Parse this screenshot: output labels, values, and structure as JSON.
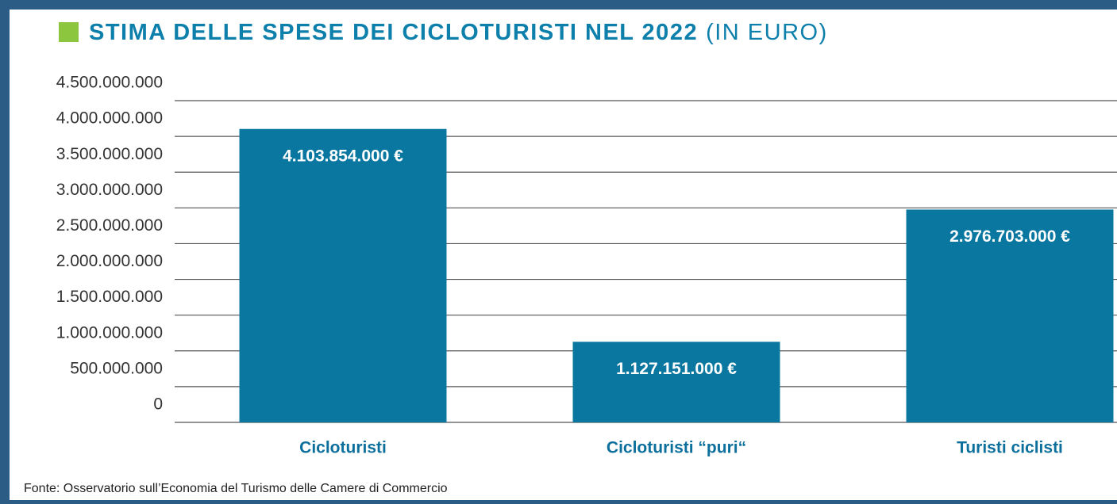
{
  "chart_data": {
    "type": "bar",
    "title": "STIMA DELLE SPESE DEI CICLOTURISTI NEL 2022",
    "subtitle": "(IN EURO)",
    "categories": [
      "Cicloturisti",
      "Cicloturisti “puri“",
      "Turisti ciclisti"
    ],
    "values": [
      4103854000,
      1127151000,
      2976703000
    ],
    "value_labels": [
      "4.103.854.000 €",
      "1.127.151.000 €",
      "2.976.703.000 €"
    ],
    "color": "#0a77a0",
    "ylim": [
      0,
      4500000000
    ],
    "yticks": [
      0,
      {
        "value": 500000000,
        "label": "500.000.000"
      },
      {
        "value": 1000000000,
        "label": "1.000.000.000"
      },
      {
        "value": 1500000000,
        "label": "1.500.000.000"
      },
      {
        "value": 2000000000,
        "label": "2.000.000.000"
      },
      {
        "value": 2500000000,
        "label": "2.500.000.000"
      },
      {
        "value": 3000000000,
        "label": "3.000.000.000"
      },
      {
        "value": 3500000000,
        "label": "3.500.000.000"
      },
      {
        "value": 4000000000,
        "label": "4.000.000.000"
      },
      {
        "value": 4500000000,
        "label": "4.500.000.000"
      }
    ],
    "grid": true,
    "source": "Fonte: Osservatorio sull’Economia del Turismo delle Camere di Commercio"
  }
}
